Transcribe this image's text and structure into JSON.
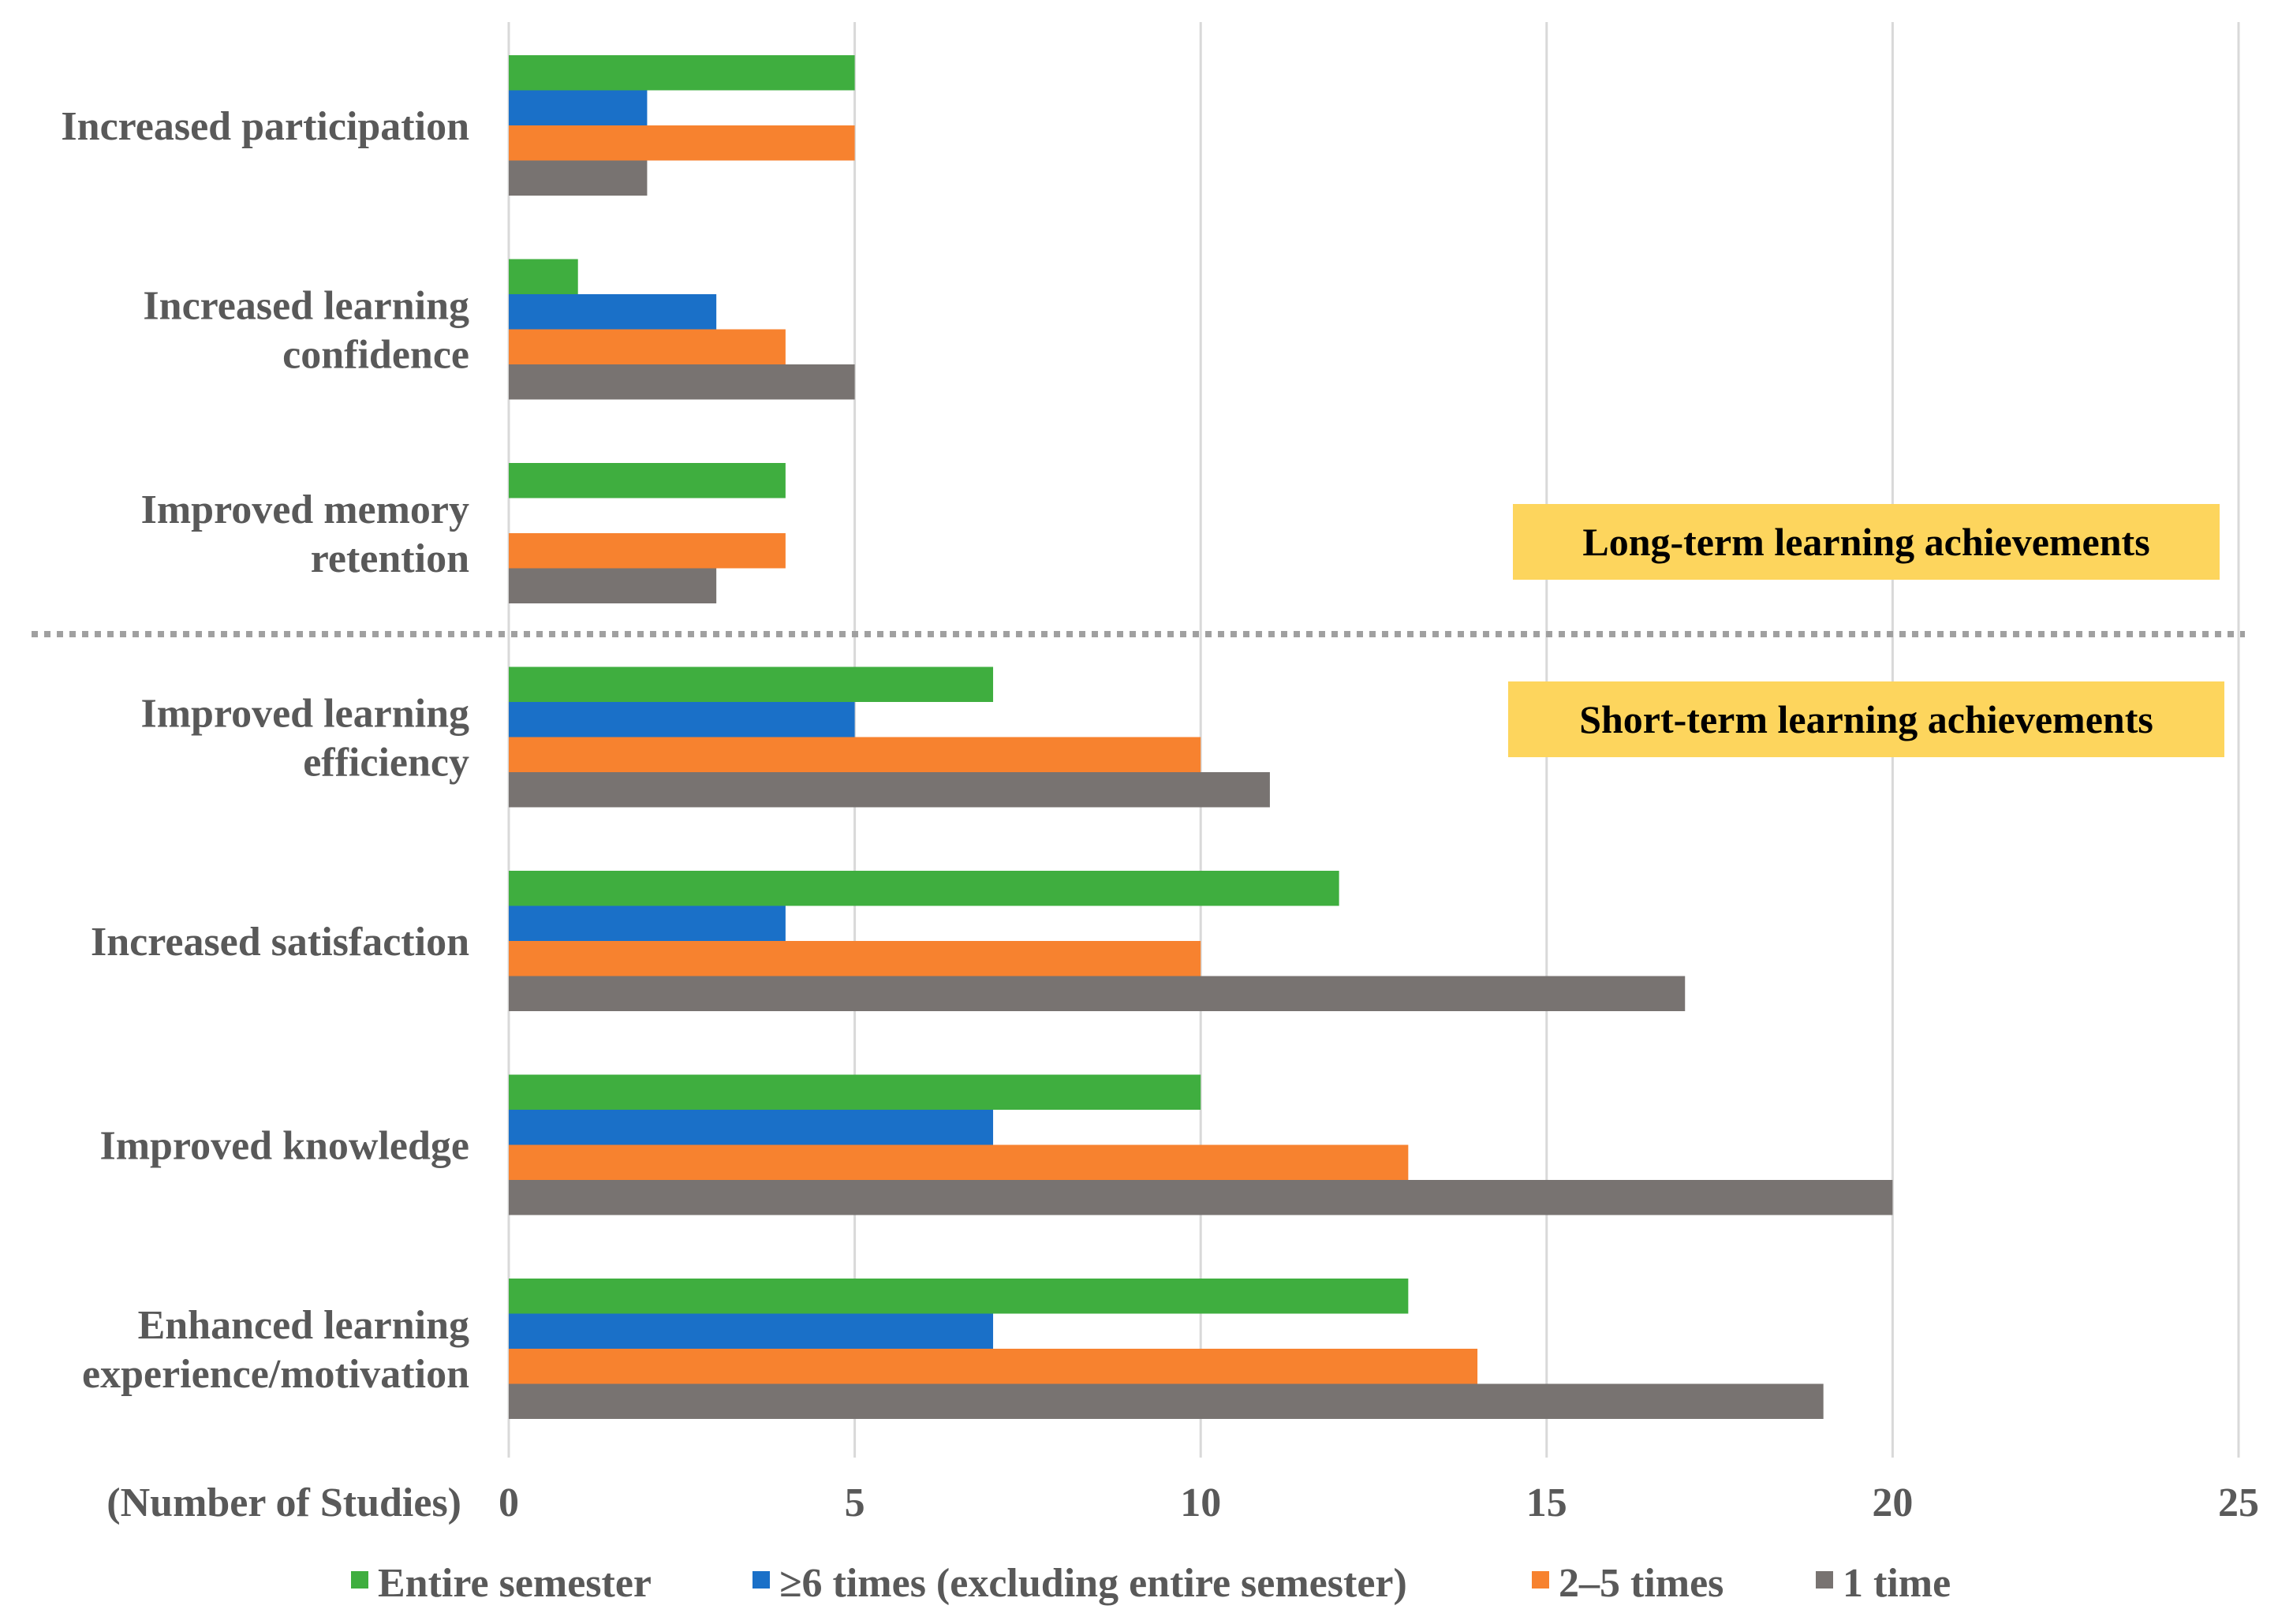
{
  "chart_data": {
    "type": "bar",
    "orientation": "horizontal",
    "xlabel": "(Number of Studies)",
    "xlim": [
      0,
      25
    ],
    "xticks": [
      0,
      5,
      10,
      15,
      20,
      25
    ],
    "grid": true,
    "legend_position": "bottom",
    "categories": [
      [
        "Increased participation"
      ],
      [
        "Increased learning",
        "confidence"
      ],
      [
        "Improved memory",
        "retention"
      ],
      [
        "Improved learning",
        "efficiency"
      ],
      [
        "Increased satisfaction"
      ],
      [
        "Improved knowledge"
      ],
      [
        "Enhanced learning",
        "experience/motivation"
      ]
    ],
    "series": [
      {
        "name": "Entire semester",
        "color": "#3fae3f",
        "values": [
          5,
          1,
          4,
          7,
          12,
          10,
          13
        ]
      },
      {
        "name": "≥6 times (excluding entire semester)",
        "color": "#1a70c8",
        "values": [
          2,
          3,
          null,
          5,
          4,
          7,
          7
        ]
      },
      {
        "name": "2–5 times",
        "color": "#f7822f",
        "values": [
          5,
          4,
          4,
          10,
          10,
          13,
          14
        ]
      },
      {
        "name": "1 time",
        "color": "#787371",
        "values": [
          2,
          5,
          3,
          11,
          17,
          20,
          19
        ]
      }
    ],
    "annotations": [
      {
        "text": "Long-term learning achievements",
        "background": "#fdd55d"
      },
      {
        "text": "Short-term learning achievements",
        "background": "#fdd55d"
      }
    ],
    "divider": {
      "style": "dotted",
      "color": "#a0a0a0",
      "between_categories": [
        2,
        3
      ]
    }
  }
}
